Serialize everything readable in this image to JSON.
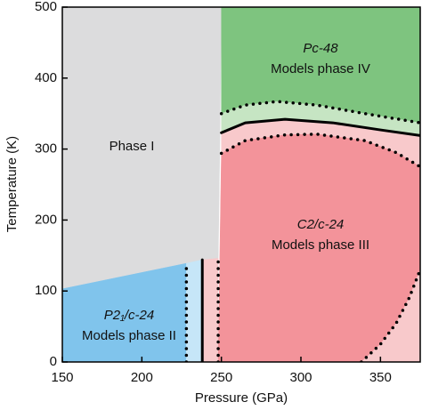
{
  "chart_data": {
    "type": "phase-diagram",
    "xlabel": "Pressure (GPa)",
    "ylabel": "Temperature (K)",
    "xlim": [
      150,
      375
    ],
    "ylim": [
      0,
      500
    ],
    "xticks": [
      150,
      200,
      250,
      300,
      350
    ],
    "yticks": [
      0,
      100,
      200,
      300,
      400,
      500
    ],
    "regions": [
      {
        "name": "Phase I",
        "color": "#dcdcdd",
        "x": [
          150,
          250,
          249,
          248,
          228,
          150
        ],
        "y": [
          500,
          500,
          300,
          146,
          139,
          103
        ]
      },
      {
        "name": "P2₁/c-24",
        "subtitle": "Models phase II",
        "color": "#80c4ec",
        "x": [
          150,
          228,
          228,
          150
        ],
        "y": [
          103,
          139,
          0,
          0
        ]
      },
      {
        "color": "#c6e6f8",
        "x": [
          228,
          238,
          238,
          228
        ],
        "y": [
          139,
          144,
          0,
          0
        ]
      },
      {
        "color": "#f8c9cb",
        "x": [
          238,
          248,
          248,
          238
        ],
        "y": [
          144,
          146,
          0,
          0
        ]
      },
      {
        "name": "Pc-48",
        "subtitle": "Models phase IV",
        "color": "#7ec47f",
        "x": [
          250,
          375,
          375,
          340,
          310,
          285,
          265,
          250
        ],
        "y": [
          500,
          500,
          337,
          350,
          362,
          367,
          362,
          350
        ]
      },
      {
        "color": "#c6e5c3",
        "x": [
          250,
          265,
          285,
          310,
          340,
          375,
          375,
          350,
          320,
          290,
          265,
          250
        ],
        "y": [
          350,
          362,
          367,
          362,
          350,
          337,
          319,
          327,
          337,
          342,
          337,
          323
        ]
      },
      {
        "color": "#f8c9cb",
        "x": [
          250,
          265,
          290,
          320,
          350,
          375,
          375,
          360,
          340,
          310,
          290,
          265,
          250
        ],
        "y": [
          323,
          337,
          342,
          337,
          327,
          319,
          275,
          295,
          312,
          321,
          320,
          312,
          294
        ]
      },
      {
        "name": "C2/c-24",
        "subtitle": "Models phase III",
        "color": "#f3939a",
        "x": [
          248,
          250,
          265,
          290,
          310,
          340,
          360,
          375,
          375,
          368,
          360,
          350,
          338
        ],
        "y": [
          0,
          294,
          312,
          320,
          321,
          312,
          295,
          275,
          130,
          90,
          55,
          25,
          0
        ]
      },
      {
        "color": "#f8c9cb",
        "x": [
          338,
          350,
          360,
          368,
          375,
          375
        ],
        "y": [
          0,
          25,
          55,
          90,
          130,
          0
        ]
      }
    ],
    "boundaries": [
      {
        "style": "solid",
        "x": [
          250,
          265,
          290,
          320,
          350,
          375
        ],
        "y": [
          323,
          337,
          342,
          337,
          327,
          319
        ]
      },
      {
        "style": "dotted",
        "x": [
          250,
          265,
          285,
          310,
          340,
          375
        ],
        "y": [
          350,
          362,
          367,
          362,
          350,
          337
        ]
      },
      {
        "style": "dotted",
        "x": [
          250,
          265,
          290,
          310,
          340,
          360,
          375
        ],
        "y": [
          294,
          312,
          320,
          321,
          312,
          295,
          275
        ]
      },
      {
        "style": "dotted",
        "x": [
          338,
          350,
          360,
          368,
          375
        ],
        "y": [
          0,
          25,
          55,
          90,
          130
        ]
      },
      {
        "style": "dotted",
        "x": [
          228,
          228
        ],
        "y": [
          0,
          139
        ]
      },
      {
        "style": "solid",
        "x": [
          238,
          238
        ],
        "y": [
          0,
          144
        ]
      },
      {
        "style": "dotted",
        "x": [
          248,
          248
        ],
        "y": [
          0,
          146
        ]
      }
    ]
  }
}
